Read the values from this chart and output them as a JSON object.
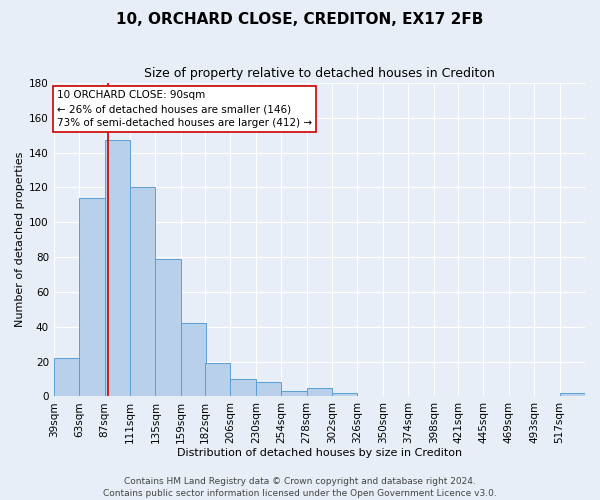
{
  "title": "10, ORCHARD CLOSE, CREDITON, EX17 2FB",
  "subtitle": "Size of property relative to detached houses in Crediton",
  "xlabel": "Distribution of detached houses by size in Crediton",
  "ylabel": "Number of detached properties",
  "bin_labels": [
    "39sqm",
    "63sqm",
    "87sqm",
    "111sqm",
    "135sqm",
    "159sqm",
    "182sqm",
    "206sqm",
    "230sqm",
    "254sqm",
    "278sqm",
    "302sqm",
    "326sqm",
    "350sqm",
    "374sqm",
    "398sqm",
    "421sqm",
    "445sqm",
    "469sqm",
    "493sqm",
    "517sqm"
  ],
  "bin_edges": [
    39,
    63,
    87,
    111,
    135,
    159,
    182,
    206,
    230,
    254,
    278,
    302,
    326,
    350,
    374,
    398,
    421,
    445,
    469,
    493,
    517
  ],
  "bar_heights": [
    22,
    114,
    147,
    120,
    79,
    42,
    19,
    10,
    8,
    3,
    5,
    2,
    0,
    0,
    0,
    0,
    0,
    0,
    0,
    0,
    2
  ],
  "bar_color": "#b8d0ea",
  "bar_edge_color": "#5a9fd4",
  "red_line_x": 90,
  "ylim": [
    0,
    180
  ],
  "yticks": [
    0,
    20,
    40,
    60,
    80,
    100,
    120,
    140,
    160,
    180
  ],
  "annotation_title": "10 ORCHARD CLOSE: 90sqm",
  "annotation_line1": "← 26% of detached houses are smaller (146)",
  "annotation_line2": "73% of semi-detached houses are larger (412) →",
  "annotation_box_color": "#ffffff",
  "annotation_box_edge": "#cc0000",
  "footer_line1": "Contains HM Land Registry data © Crown copyright and database right 2024.",
  "footer_line2": "Contains public sector information licensed under the Open Government Licence v3.0.",
  "background_color": "#e8eef7",
  "grid_color": "#ffffff",
  "title_fontsize": 11,
  "subtitle_fontsize": 9,
  "axis_label_fontsize": 8,
  "tick_fontsize": 7.5,
  "footer_fontsize": 6.5
}
